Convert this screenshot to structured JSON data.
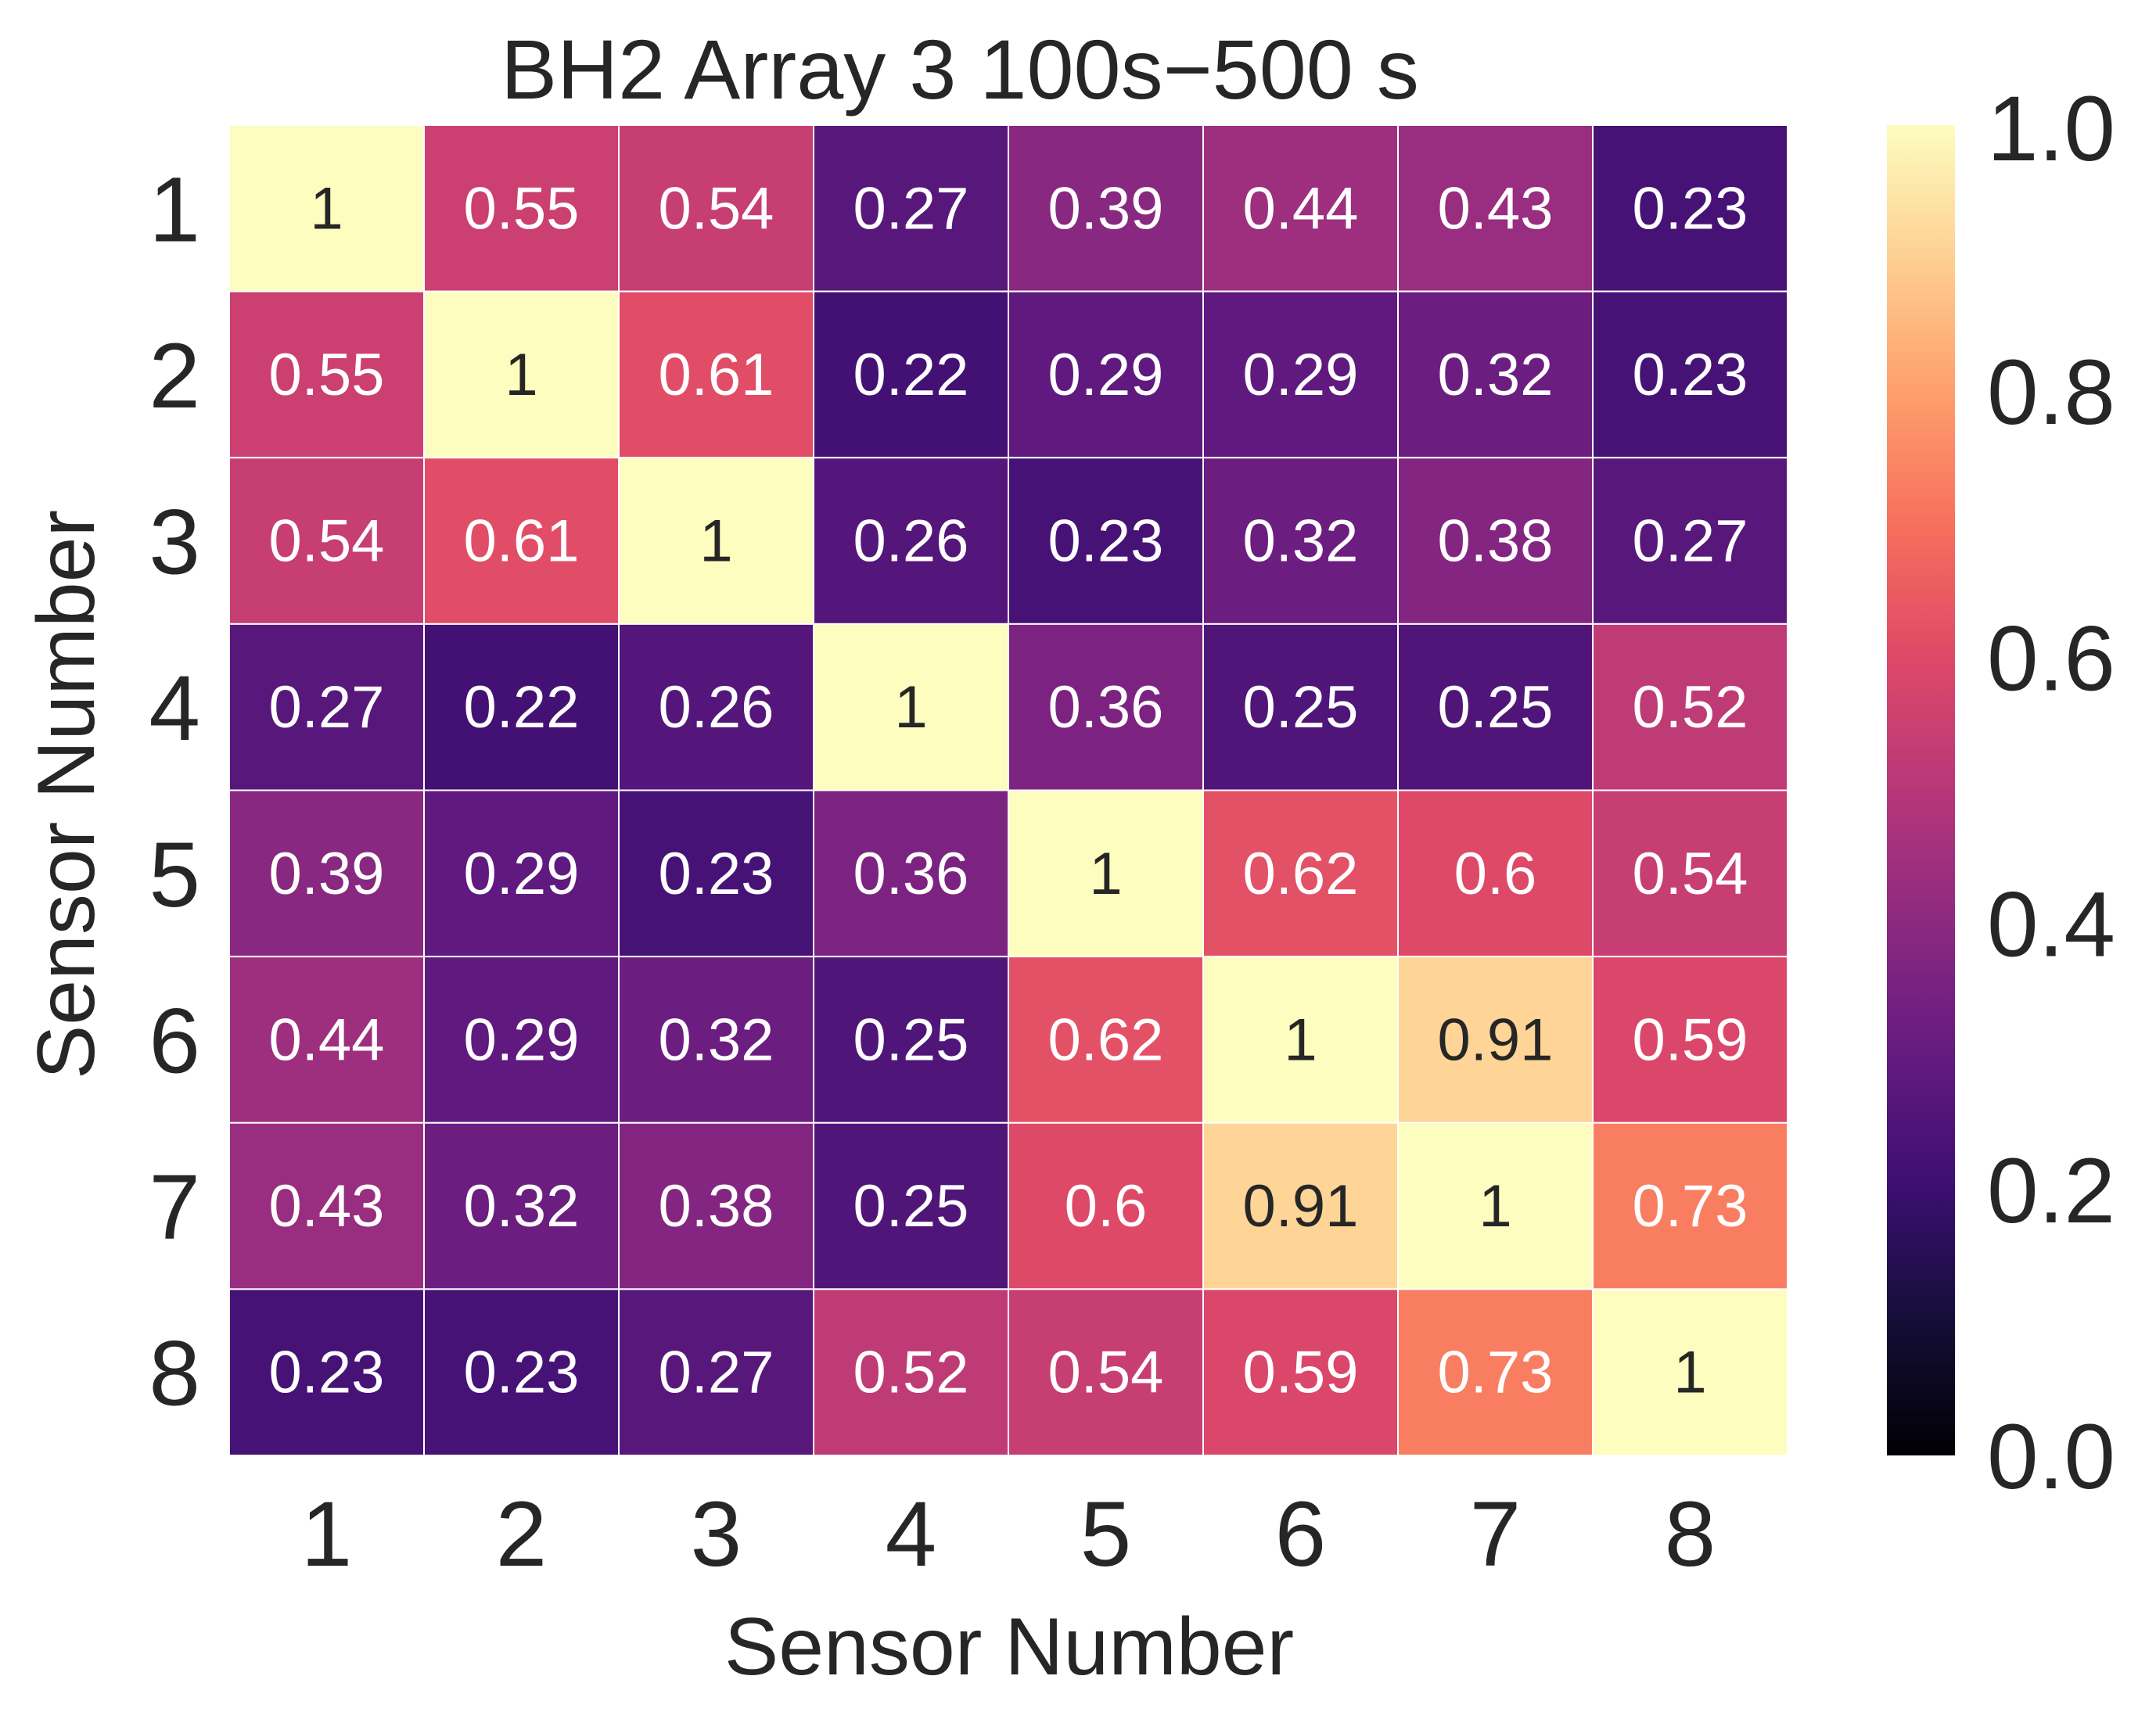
{
  "chart_data": {
    "type": "heatmap",
    "title": "BH2 Array 3 100s−500 s",
    "xlabel": "Sensor Number",
    "ylabel": "Sensor Number",
    "x_categories": [
      "1",
      "2",
      "3",
      "4",
      "5",
      "6",
      "7",
      "8"
    ],
    "y_categories": [
      "1",
      "2",
      "3",
      "4",
      "5",
      "6",
      "7",
      "8"
    ],
    "values": [
      [
        1,
        0.55,
        0.54,
        0.27,
        0.39,
        0.44,
        0.43,
        0.23
      ],
      [
        0.55,
        1,
        0.61,
        0.22,
        0.29,
        0.29,
        0.32,
        0.23
      ],
      [
        0.54,
        0.61,
        1,
        0.26,
        0.23,
        0.32,
        0.38,
        0.27
      ],
      [
        0.27,
        0.22,
        0.26,
        1,
        0.36,
        0.25,
        0.25,
        0.52
      ],
      [
        0.39,
        0.29,
        0.23,
        0.36,
        1,
        0.62,
        0.6,
        0.54
      ],
      [
        0.44,
        0.29,
        0.32,
        0.25,
        0.62,
        1,
        0.91,
        0.59
      ],
      [
        0.43,
        0.32,
        0.38,
        0.25,
        0.6,
        0.91,
        1,
        0.73
      ],
      [
        0.23,
        0.23,
        0.27,
        0.52,
        0.54,
        0.59,
        0.73,
        1
      ]
    ],
    "colorbar": {
      "colormap": "magma",
      "range": [
        0.0,
        1.0
      ],
      "ticks": [
        "0.0",
        "0.2",
        "0.4",
        "0.6",
        "0.8",
        "1.0"
      ]
    },
    "grid_line_color": "#ffffff",
    "annotation_dark_text_color": "#262626",
    "annotation_light_text_color": "#ffffff"
  }
}
